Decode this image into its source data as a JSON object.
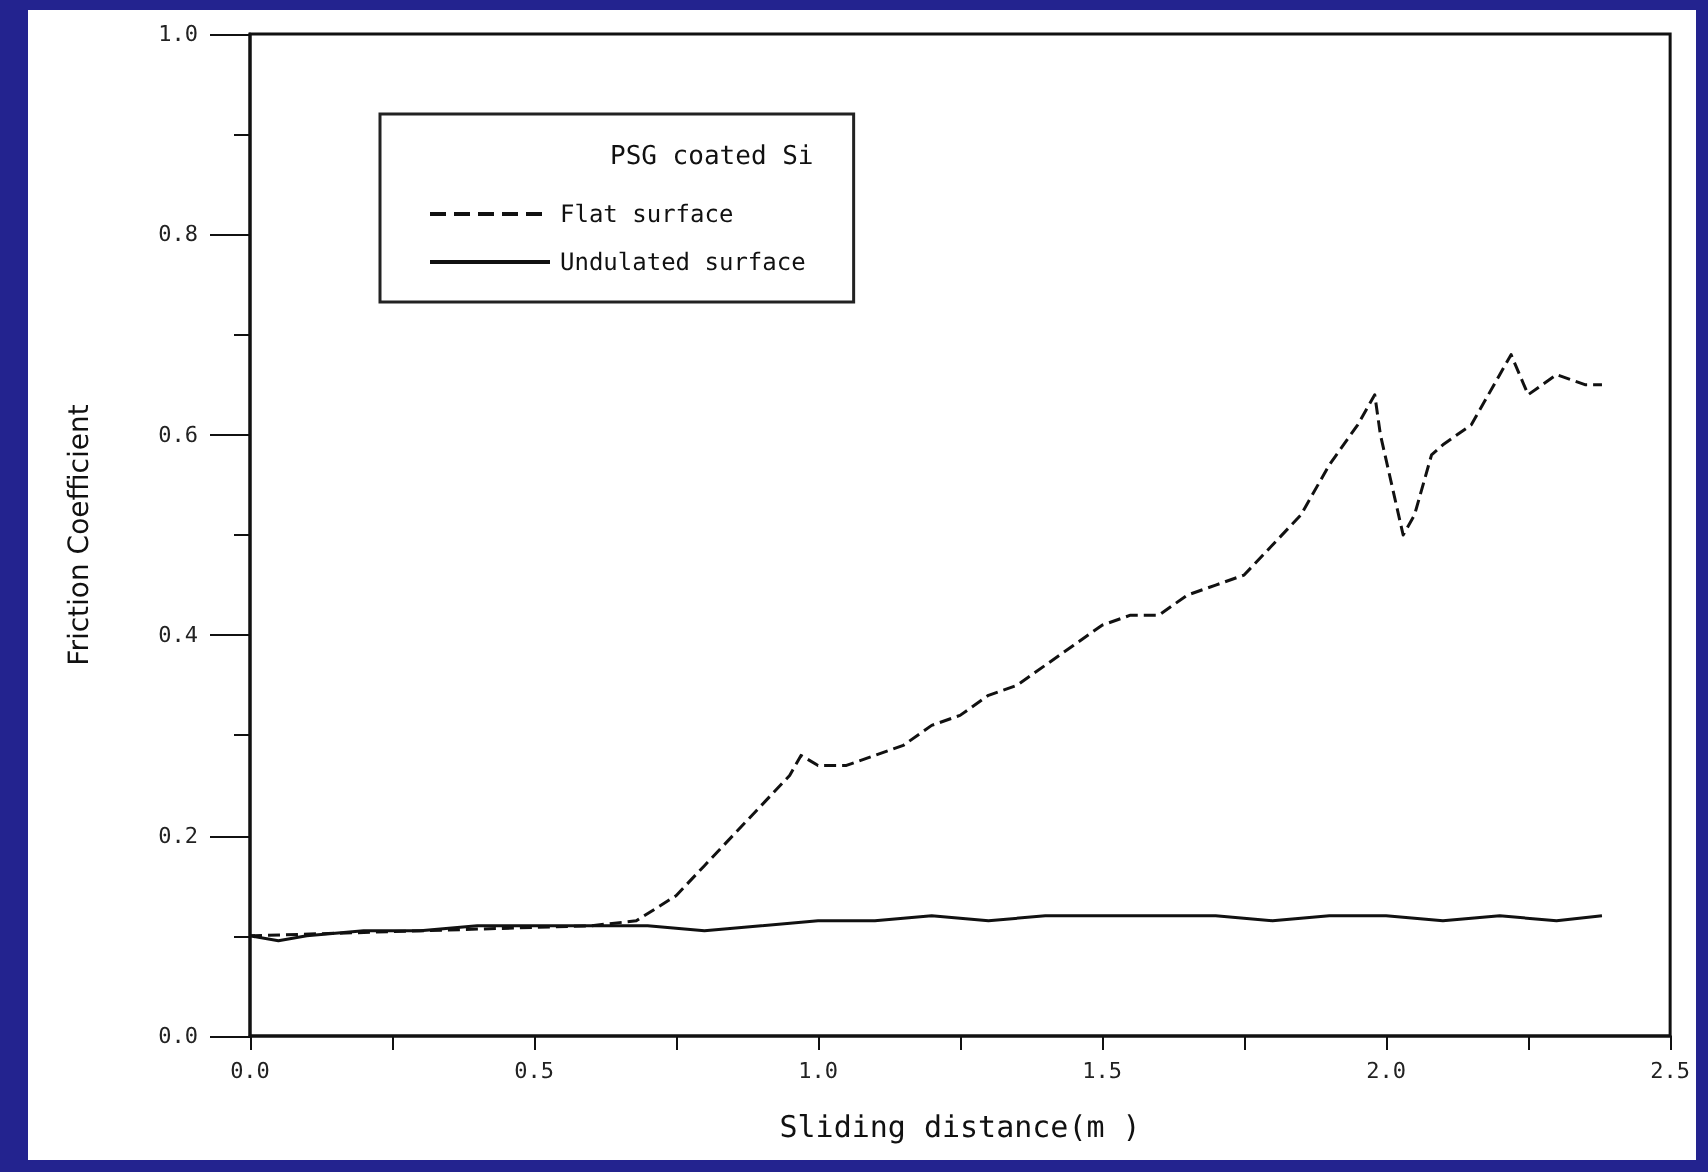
{
  "chart_data": {
    "type": "line",
    "xlabel": "Sliding distance(m )",
    "ylabel": "Friction Coefficient",
    "legend_title": "PSG coated Si",
    "legend": "top left",
    "grid": false,
    "marker": "none",
    "xlim": [
      0,
      2.5
    ],
    "ylim": [
      0,
      1
    ],
    "xticks": [
      {
        "value": 0,
        "label": "0.0"
      },
      {
        "value": 0.5,
        "label": "0.5"
      },
      {
        "value": 1,
        "label": "1.0"
      },
      {
        "value": 1.5,
        "label": "1.5"
      },
      {
        "value": 2,
        "label": "2.0"
      },
      {
        "value": 2.5,
        "label": "2.5"
      }
    ],
    "yticks": [
      {
        "value": 0,
        "label": "0.0"
      },
      {
        "value": 0.2,
        "label": "0.2"
      },
      {
        "value": 0.4,
        "label": "0.4"
      },
      {
        "value": 0.6,
        "label": "0.6"
      },
      {
        "value": 0.8,
        "label": "0.8"
      },
      {
        "value": 1,
        "label": "1.0"
      }
    ],
    "series": [
      {
        "name": "Flat surface",
        "color": "#111111",
        "line_style": "dashed",
        "x": [
          0,
          0.3,
          0.6,
          0.68,
          0.75,
          0.8,
          0.85,
          0.9,
          0.95,
          0.97,
          1.0,
          1.05,
          1.1,
          1.15,
          1.2,
          1.25,
          1.3,
          1.35,
          1.4,
          1.45,
          1.5,
          1.55,
          1.6,
          1.65,
          1.7,
          1.75,
          1.8,
          1.85,
          1.9,
          1.95,
          1.98,
          1.99,
          2.01,
          2.03,
          2.05,
          2.08,
          2.1,
          2.15,
          2.2,
          2.22,
          2.25,
          2.3,
          2.35,
          2.38
        ],
        "values": [
          0.1,
          0.105,
          0.11,
          0.115,
          0.14,
          0.17,
          0.2,
          0.23,
          0.26,
          0.28,
          0.27,
          0.27,
          0.28,
          0.29,
          0.31,
          0.32,
          0.34,
          0.35,
          0.37,
          0.39,
          0.41,
          0.42,
          0.42,
          0.44,
          0.45,
          0.46,
          0.49,
          0.52,
          0.57,
          0.61,
          0.64,
          0.6,
          0.55,
          0.5,
          0.52,
          0.58,
          0.59,
          0.61,
          0.66,
          0.68,
          0.64,
          0.66,
          0.65,
          0.65
        ]
      },
      {
        "name": "Undulated surface",
        "color": "#111111",
        "line_style": "solid",
        "x": [
          0,
          0.05,
          0.1,
          0.2,
          0.3,
          0.4,
          0.5,
          0.6,
          0.7,
          0.8,
          0.9,
          1.0,
          1.1,
          1.2,
          1.3,
          1.4,
          1.5,
          1.6,
          1.7,
          1.8,
          1.9,
          2.0,
          2.1,
          2.2,
          2.3,
          2.38
        ],
        "values": [
          0.1,
          0.095,
          0.1,
          0.105,
          0.105,
          0.11,
          0.11,
          0.11,
          0.11,
          0.105,
          0.11,
          0.115,
          0.115,
          0.12,
          0.115,
          0.12,
          0.12,
          0.12,
          0.12,
          0.115,
          0.12,
          0.12,
          0.115,
          0.12,
          0.115,
          0.12
        ]
      }
    ]
  }
}
